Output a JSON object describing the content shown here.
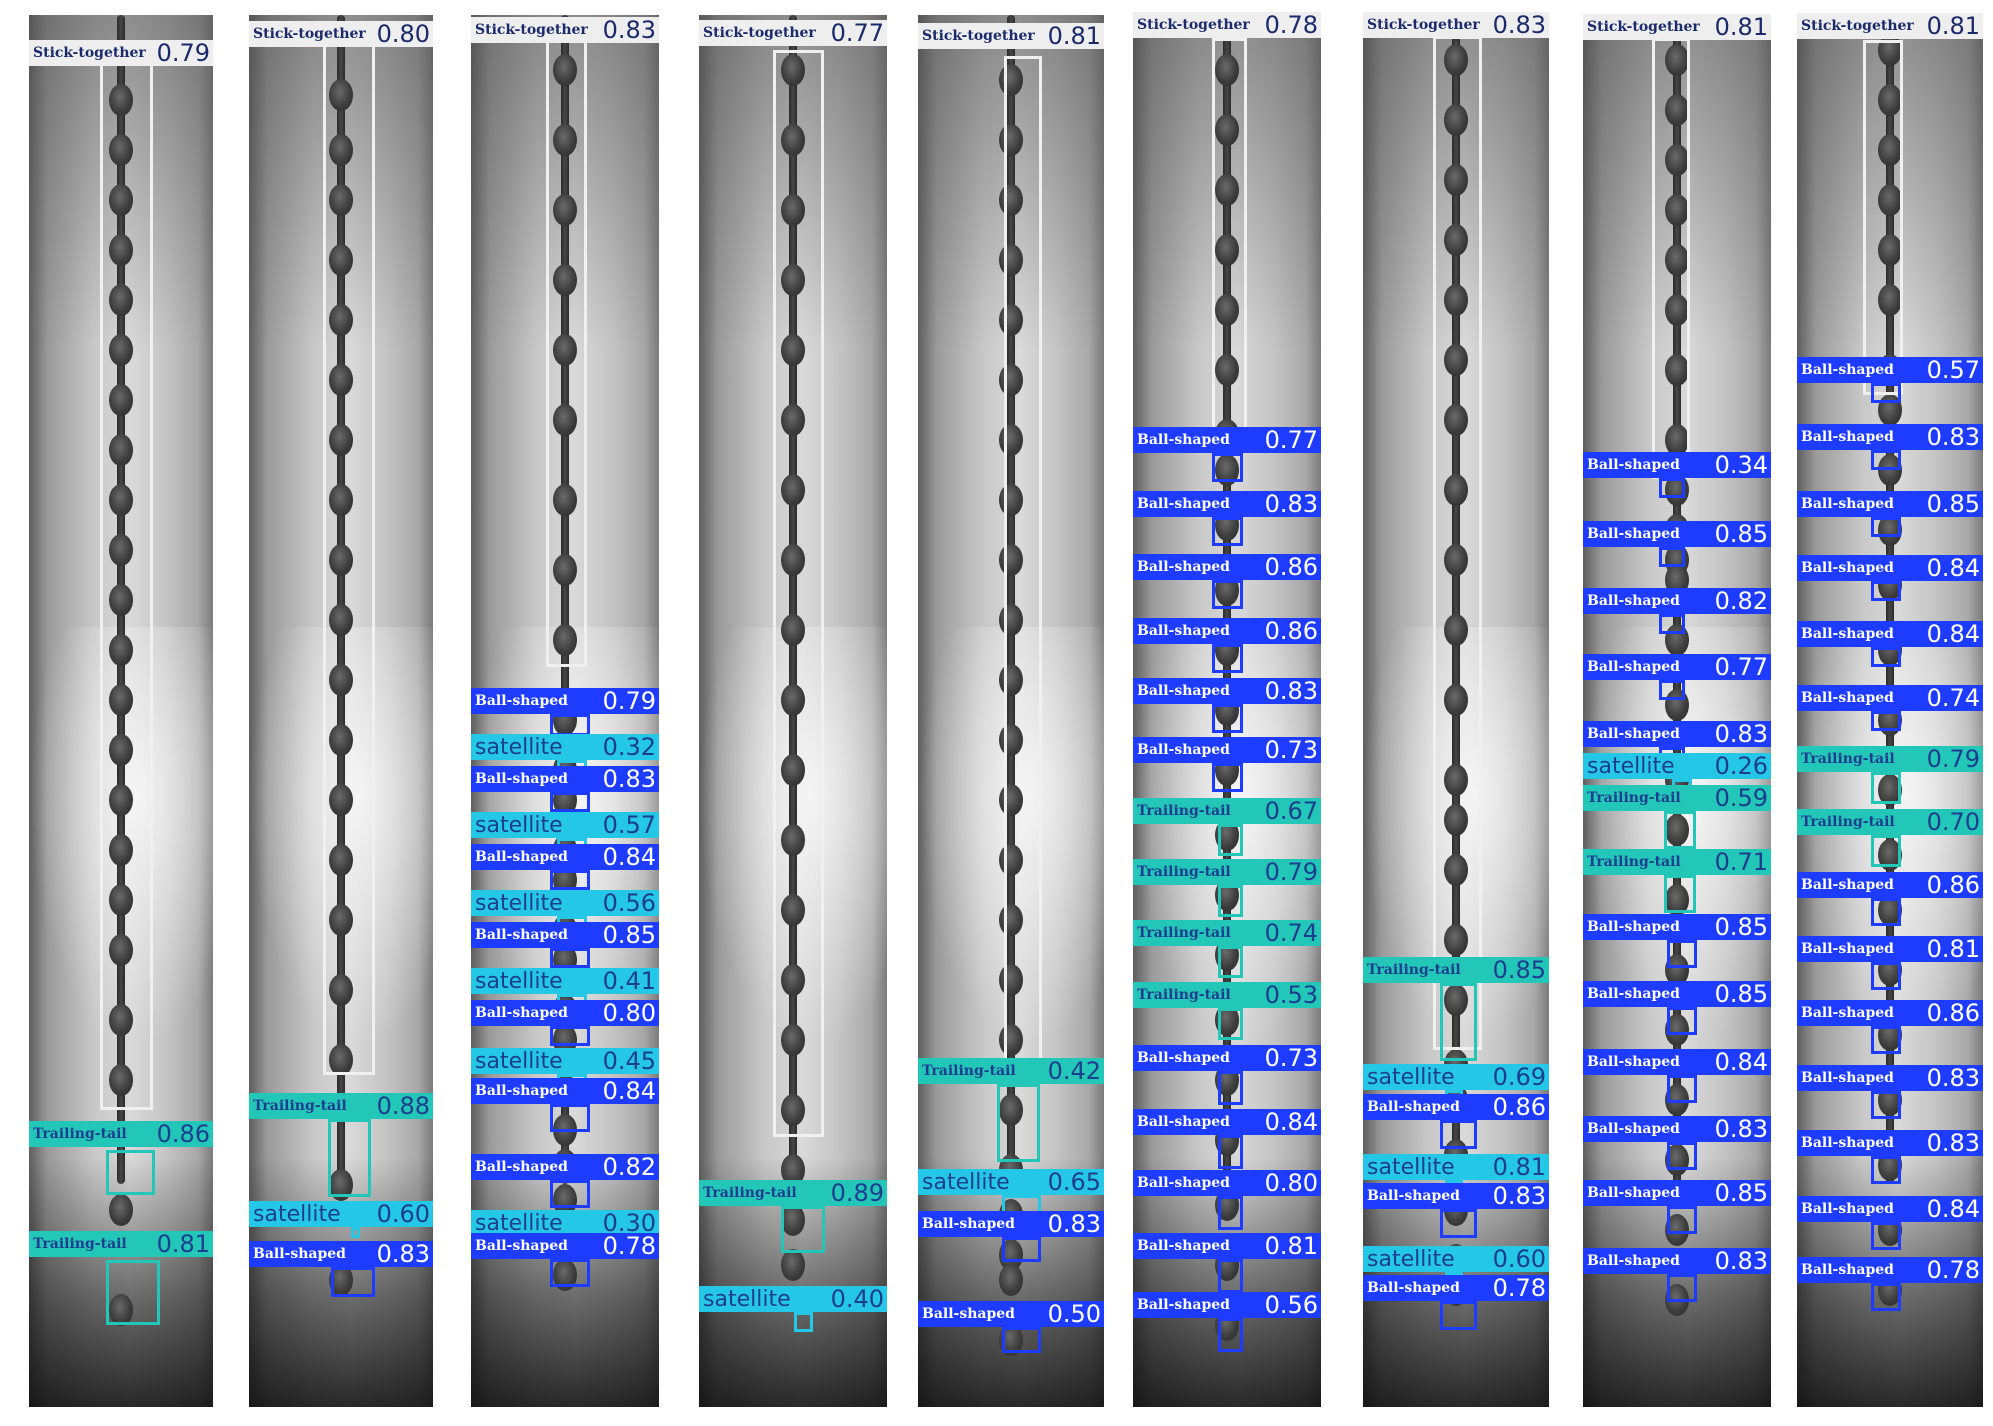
{
  "colors": {
    "Stick-together": {
      "box": "#f0f0f0",
      "bg": "#eeeeee",
      "text": "#1b2a6b"
    },
    "Ball-shaped": {
      "box": "#1e3cff",
      "bg": "#1e3cff",
      "text": "#ffffff"
    },
    "satellite": {
      "box": "#25c7e6",
      "bg": "#25c7e6",
      "text": "#1d3d8f"
    },
    "Trailing-tail": {
      "box": "#22c7b8",
      "bg": "#22c7b8",
      "text": "#1d3d8f"
    }
  },
  "panels": [
    {
      "detections": [
        {
          "label": "Stick-together",
          "conf": "0.79"
        },
        {
          "label": "Trailing-tail",
          "conf": "0.86"
        },
        {
          "label": "Trailing-tail",
          "conf": "0.81"
        }
      ]
    },
    {
      "detections": [
        {
          "label": "Stick-together",
          "conf": "0.80"
        },
        {
          "label": "Trailing-tail",
          "conf": "0.88"
        },
        {
          "label": "satellite",
          "conf": "0.60"
        },
        {
          "label": "Ball-shaped",
          "conf": "0.83"
        }
      ]
    },
    {
      "detections": [
        {
          "label": "Stick-together",
          "conf": "0.83"
        },
        {
          "label": "Ball-shaped",
          "conf": "0.79"
        },
        {
          "label": "satellite",
          "conf": "0.32"
        },
        {
          "label": "Ball-shaped",
          "conf": "0.83"
        },
        {
          "label": "satellite",
          "conf": "0.57"
        },
        {
          "label": "Ball-shaped",
          "conf": "0.84"
        },
        {
          "label": "satellite",
          "conf": "0.56"
        },
        {
          "label": "Ball-shaped",
          "conf": "0.85"
        },
        {
          "label": "satellite",
          "conf": "0.41"
        },
        {
          "label": "Ball-shaped",
          "conf": "0.80"
        },
        {
          "label": "satellite",
          "conf": "0.45"
        },
        {
          "label": "Ball-shaped",
          "conf": "0.84"
        },
        {
          "label": "Ball-shaped",
          "conf": "0.82"
        },
        {
          "label": "satellite",
          "conf": "0.30"
        },
        {
          "label": "Ball-shaped",
          "conf": "0.78"
        }
      ]
    },
    {
      "detections": [
        {
          "label": "Stick-together",
          "conf": "0.77"
        },
        {
          "label": "Trailing-tail",
          "conf": "0.89"
        },
        {
          "label": "satellite",
          "conf": "0.40"
        }
      ]
    },
    {
      "detections": [
        {
          "label": "Stick-together",
          "conf": "0.81"
        },
        {
          "label": "Trailing-tail",
          "conf": "0.42"
        },
        {
          "label": "satellite",
          "conf": "0.65"
        },
        {
          "label": "Ball-shaped",
          "conf": "0.83"
        },
        {
          "label": "Ball-shaped",
          "conf": "0.50"
        }
      ]
    },
    {
      "detections": [
        {
          "label": "Stick-together",
          "conf": "0.78"
        },
        {
          "label": "Ball-shaped",
          "conf": "0.77"
        },
        {
          "label": "Ball-shaped",
          "conf": "0.83"
        },
        {
          "label": "Ball-shaped",
          "conf": "0.86"
        },
        {
          "label": "Ball-shaped",
          "conf": "0.86"
        },
        {
          "label": "Ball-shaped",
          "conf": "0.83"
        },
        {
          "label": "Ball-shaped",
          "conf": "0.73"
        },
        {
          "label": "Trailing-tail",
          "conf": "0.67"
        },
        {
          "label": "Trailing-tail",
          "conf": "0.79"
        },
        {
          "label": "Trailing-tail",
          "conf": "0.74"
        },
        {
          "label": "Trailing-tail",
          "conf": "0.53"
        },
        {
          "label": "Ball-shaped",
          "conf": "0.73"
        },
        {
          "label": "Ball-shaped",
          "conf": "0.84"
        },
        {
          "label": "Ball-shaped",
          "conf": "0.80"
        },
        {
          "label": "Ball-shaped",
          "conf": "0.81"
        },
        {
          "label": "Ball-shaped",
          "conf": "0.56"
        }
      ]
    },
    {
      "detections": [
        {
          "label": "Stick-together",
          "conf": "0.83"
        },
        {
          "label": "Trailing-tail",
          "conf": "0.85"
        },
        {
          "label": "satellite",
          "conf": "0.69"
        },
        {
          "label": "Ball-shaped",
          "conf": "0.86"
        },
        {
          "label": "satellite",
          "conf": "0.81"
        },
        {
          "label": "Ball-shaped",
          "conf": "0.83"
        },
        {
          "label": "satellite",
          "conf": "0.60"
        },
        {
          "label": "Ball-shaped",
          "conf": "0.78"
        }
      ]
    },
    {
      "detections": [
        {
          "label": "Stick-together",
          "conf": "0.81"
        },
        {
          "label": "Ball-shaped",
          "conf": "0.34"
        },
        {
          "label": "Ball-shaped",
          "conf": "0.85"
        },
        {
          "label": "Ball-shaped",
          "conf": "0.82"
        },
        {
          "label": "Ball-shaped",
          "conf": "0.77"
        },
        {
          "label": "Ball-shaped",
          "conf": "0.83"
        },
        {
          "label": "satellite",
          "conf": "0.26"
        },
        {
          "label": "Trailing-tail",
          "conf": "0.59"
        },
        {
          "label": "Trailing-tail",
          "conf": "0.71"
        },
        {
          "label": "Ball-shaped",
          "conf": "0.85"
        },
        {
          "label": "Ball-shaped",
          "conf": "0.85"
        },
        {
          "label": "Ball-shaped",
          "conf": "0.84"
        },
        {
          "label": "Ball-shaped",
          "conf": "0.83"
        },
        {
          "label": "Ball-shaped",
          "conf": "0.85"
        },
        {
          "label": "Ball-shaped",
          "conf": "0.83"
        }
      ]
    },
    {
      "detections": [
        {
          "label": "Stick-together",
          "conf": "0.81"
        },
        {
          "label": "Ball-shaped",
          "conf": "0.57"
        },
        {
          "label": "Ball-shaped",
          "conf": "0.83"
        },
        {
          "label": "Ball-shaped",
          "conf": "0.85"
        },
        {
          "label": "Ball-shaped",
          "conf": "0.84"
        },
        {
          "label": "Ball-shaped",
          "conf": "0.84"
        },
        {
          "label": "Ball-shaped",
          "conf": "0.74"
        },
        {
          "label": "Trailing-tail",
          "conf": "0.79"
        },
        {
          "label": "Trailing-tail",
          "conf": "0.70"
        },
        {
          "label": "Ball-shaped",
          "conf": "0.86"
        },
        {
          "label": "Ball-shaped",
          "conf": "0.81"
        },
        {
          "label": "Ball-shaped",
          "conf": "0.86"
        },
        {
          "label": "Ball-shaped",
          "conf": "0.83"
        },
        {
          "label": "Ball-shaped",
          "conf": "0.83"
        },
        {
          "label": "Ball-shaped",
          "conf": "0.84"
        },
        {
          "label": "Ball-shaped",
          "conf": "0.78"
        }
      ]
    }
  ]
}
